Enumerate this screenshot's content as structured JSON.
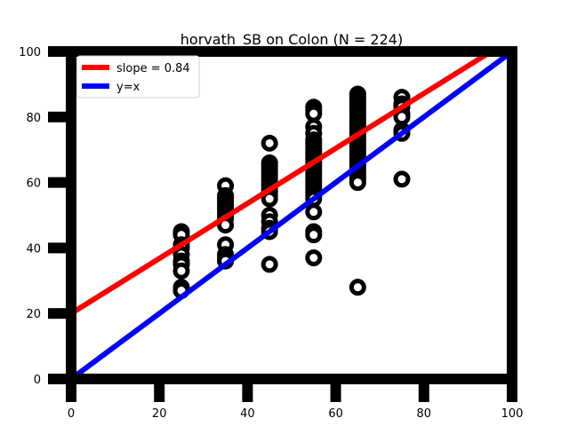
{
  "chart_data": {
    "type": "scatter",
    "title": "horvath_SB on Colon (N = 224)",
    "xlabel": "",
    "ylabel": "",
    "xlim": [
      0,
      100
    ],
    "ylim": [
      0,
      100
    ],
    "x_ticks": [
      "0",
      "20",
      "40",
      "60",
      "80",
      "100"
    ],
    "y_ticks": [
      "0",
      "20",
      "40",
      "60",
      "80",
      "100"
    ],
    "grid": false,
    "legend_position": "top-left",
    "series": [
      {
        "name": "",
        "color": "#000000",
        "points": [
          [
            25,
            45
          ],
          [
            25,
            44
          ],
          [
            25,
            41
          ],
          [
            25,
            40
          ],
          [
            25,
            38
          ],
          [
            25,
            36
          ],
          [
            25,
            35
          ],
          [
            25,
            33
          ],
          [
            25,
            28
          ],
          [
            25,
            27
          ],
          [
            35,
            59
          ],
          [
            35,
            56
          ],
          [
            35,
            55
          ],
          [
            35,
            54
          ],
          [
            35,
            53
          ],
          [
            35,
            52
          ],
          [
            35,
            51
          ],
          [
            35,
            50
          ],
          [
            35,
            49
          ],
          [
            35,
            47
          ],
          [
            35,
            41
          ],
          [
            35,
            38
          ],
          [
            35,
            37
          ],
          [
            35,
            36
          ],
          [
            45,
            72
          ],
          [
            45,
            66
          ],
          [
            45,
            65
          ],
          [
            45,
            64
          ],
          [
            45,
            63
          ],
          [
            45,
            62
          ],
          [
            45,
            61
          ],
          [
            45,
            60
          ],
          [
            45,
            59
          ],
          [
            45,
            58
          ],
          [
            45,
            57
          ],
          [
            45,
            56
          ],
          [
            45,
            55
          ],
          [
            45,
            50
          ],
          [
            45,
            48
          ],
          [
            45,
            46
          ],
          [
            45,
            45
          ],
          [
            45,
            35
          ],
          [
            55,
            83
          ],
          [
            55,
            82
          ],
          [
            55,
            81
          ],
          [
            55,
            77
          ],
          [
            55,
            75
          ],
          [
            55,
            73
          ],
          [
            55,
            72
          ],
          [
            55,
            71
          ],
          [
            55,
            70
          ],
          [
            55,
            69
          ],
          [
            55,
            68
          ],
          [
            55,
            67
          ],
          [
            55,
            66
          ],
          [
            55,
            65
          ],
          [
            55,
            64
          ],
          [
            55,
            63
          ],
          [
            55,
            62
          ],
          [
            55,
            61
          ],
          [
            55,
            60
          ],
          [
            55,
            59
          ],
          [
            55,
            58
          ],
          [
            55,
            57
          ],
          [
            55,
            56
          ],
          [
            55,
            55
          ],
          [
            55,
            51
          ],
          [
            55,
            45
          ],
          [
            55,
            44
          ],
          [
            55,
            37
          ],
          [
            65,
            87
          ],
          [
            65,
            86
          ],
          [
            65,
            85
          ],
          [
            65,
            84
          ],
          [
            65,
            83
          ],
          [
            65,
            82
          ],
          [
            65,
            81
          ],
          [
            65,
            80
          ],
          [
            65,
            79
          ],
          [
            65,
            78
          ],
          [
            65,
            77
          ],
          [
            65,
            76
          ],
          [
            65,
            75
          ],
          [
            65,
            74
          ],
          [
            65,
            73
          ],
          [
            65,
            72
          ],
          [
            65,
            71
          ],
          [
            65,
            70
          ],
          [
            65,
            69
          ],
          [
            65,
            68
          ],
          [
            65,
            67
          ],
          [
            65,
            66
          ],
          [
            65,
            65
          ],
          [
            65,
            64
          ],
          [
            65,
            63
          ],
          [
            65,
            62
          ],
          [
            65,
            61
          ],
          [
            65,
            60
          ],
          [
            65,
            28
          ],
          [
            75,
            86
          ],
          [
            75,
            84
          ],
          [
            75,
            83
          ],
          [
            75,
            81
          ],
          [
            75,
            80
          ],
          [
            75,
            76
          ],
          [
            75,
            75
          ],
          [
            75,
            61
          ]
        ]
      }
    ],
    "lines": [
      {
        "name": "slope = 0.84",
        "color": "#ff0000",
        "slope": 0.84,
        "intercept": 20
      },
      {
        "name": "y=x",
        "color": "#0000ff",
        "slope": 1,
        "intercept": 0
      }
    ]
  }
}
